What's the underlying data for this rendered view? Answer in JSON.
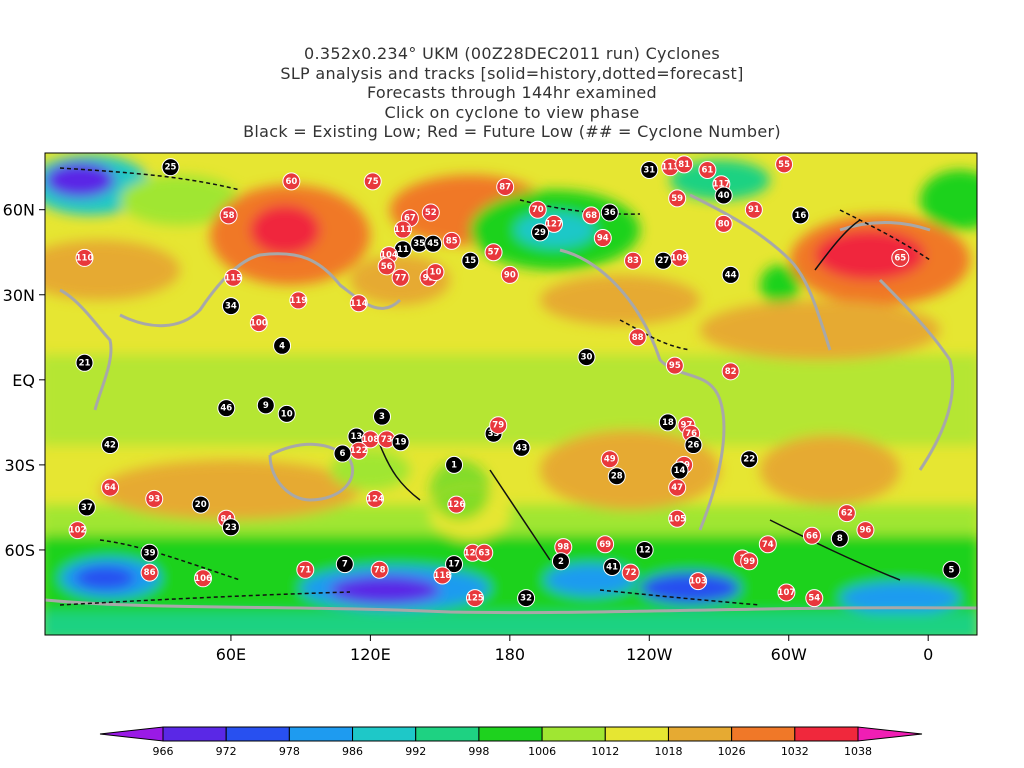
{
  "title_lines": [
    "0.352x0.234° UKM (00Z28DEC2011 run) Cyclones",
    "SLP analysis and tracks [solid=history,dotted=forecast]",
    "Forecasts through 144hr examined",
    "Click on cyclone to view phase",
    "Black = Existing Low; Red = Future Low (## = Cyclone Number)"
  ],
  "axes": {
    "lon_ticks": [
      {
        "label": "60E",
        "lon": 60
      },
      {
        "label": "120E",
        "lon": 120
      },
      {
        "label": "180",
        "lon": 180
      },
      {
        "label": "120W",
        "lon": 240
      },
      {
        "label": "60W",
        "lon": 300
      },
      {
        "label": "0",
        "lon": 360
      }
    ],
    "lat_ticks": [
      {
        "label": "60N",
        "lat": 60
      },
      {
        "label": "30N",
        "lat": 30
      },
      {
        "label": "EQ",
        "lat": 0
      },
      {
        "label": "30S",
        "lat": -30
      },
      {
        "label": "60S",
        "lat": -60
      }
    ]
  },
  "colorbar": {
    "labels": [
      "966",
      "972",
      "978",
      "986",
      "992",
      "998",
      "1006",
      "1012",
      "1018",
      "1026",
      "1032",
      "1038"
    ],
    "colors": [
      "#8a1ae6",
      "#5a28e6",
      "#2850f0",
      "#1e9bf0",
      "#1ec8c8",
      "#1ed282",
      "#1ed21e",
      "#a0e632",
      "#e6e632",
      "#e6aa32",
      "#f07828",
      "#f0283c",
      "#e61ea0"
    ],
    "left_color": "#9a1ae6",
    "right_color": "#f01eb4"
  },
  "cyclones": [
    {
      "id": "25",
      "type": "existing",
      "lon": 34,
      "lat": 75
    },
    {
      "id": "60",
      "type": "future",
      "lon": 86,
      "lat": 70
    },
    {
      "id": "75",
      "type": "future",
      "lon": 121,
      "lat": 70
    },
    {
      "id": "58",
      "type": "future",
      "lon": 59,
      "lat": 58
    },
    {
      "id": "87",
      "type": "future",
      "lon": 178,
      "lat": 68
    },
    {
      "id": "31",
      "type": "existing",
      "lon": 240,
      "lat": 74
    },
    {
      "id": "113",
      "type": "future",
      "lon": 249,
      "lat": 75
    },
    {
      "id": "81",
      "type": "future",
      "lon": 255,
      "lat": 76
    },
    {
      "id": "61",
      "type": "future",
      "lon": 265,
      "lat": 74
    },
    {
      "id": "55",
      "type": "future",
      "lon": 298,
      "lat": 76
    },
    {
      "id": "117",
      "type": "future",
      "lon": 271,
      "lat": 69
    },
    {
      "id": "40",
      "type": "existing",
      "lon": 272,
      "lat": 65
    },
    {
      "id": "59",
      "type": "future",
      "lon": 252,
      "lat": 64
    },
    {
      "id": "70",
      "type": "future",
      "lon": 192,
      "lat": 60
    },
    {
      "id": "127",
      "type": "future",
      "lon": 199,
      "lat": 55
    },
    {
      "id": "68",
      "type": "future",
      "lon": 215,
      "lat": 58
    },
    {
      "id": "36",
      "type": "existing",
      "lon": 223,
      "lat": 59
    },
    {
      "id": "29",
      "type": "existing",
      "lon": 193,
      "lat": 52
    },
    {
      "id": "94",
      "type": "future",
      "lon": 220,
      "lat": 50
    },
    {
      "id": "80",
      "type": "future",
      "lon": 272,
      "lat": 55
    },
    {
      "id": "91",
      "type": "future",
      "lon": 285,
      "lat": 60
    },
    {
      "id": "16",
      "type": "existing",
      "lon": 305,
      "lat": 58
    },
    {
      "id": "52",
      "type": "future",
      "lon": 146,
      "lat": 59
    },
    {
      "id": "67",
      "type": "future",
      "lon": 137,
      "lat": 57
    },
    {
      "id": "111",
      "type": "future",
      "lon": 134,
      "lat": 53
    },
    {
      "id": "35",
      "type": "existing",
      "lon": 141,
      "lat": 48
    },
    {
      "id": "45",
      "type": "existing",
      "lon": 147,
      "lat": 48
    },
    {
      "id": "85",
      "type": "future",
      "lon": 155,
      "lat": 49
    },
    {
      "id": "11",
      "type": "existing",
      "lon": 134,
      "lat": 46
    },
    {
      "id": "104",
      "type": "future",
      "lon": 128,
      "lat": 44
    },
    {
      "id": "56",
      "type": "future",
      "lon": 127,
      "lat": 40
    },
    {
      "id": "77",
      "type": "future",
      "lon": 133,
      "lat": 36
    },
    {
      "id": "92",
      "type": "future",
      "lon": 145,
      "lat": 36
    },
    {
      "id": "10",
      "type": "future",
      "lon": 148,
      "lat": 38
    },
    {
      "id": "15",
      "type": "existing",
      "lon": 163,
      "lat": 42
    },
    {
      "id": "57",
      "type": "future",
      "lon": 173,
      "lat": 45
    },
    {
      "id": "90",
      "type": "future",
      "lon": 180,
      "lat": 37
    },
    {
      "id": "83",
      "type": "future",
      "lon": 233,
      "lat": 42
    },
    {
      "id": "27",
      "type": "existing",
      "lon": 246,
      "lat": 42
    },
    {
      "id": "109",
      "type": "future",
      "lon": 253,
      "lat": 43
    },
    {
      "id": "44",
      "type": "existing",
      "lon": 275,
      "lat": 37
    },
    {
      "id": "65",
      "type": "future",
      "lon": 348,
      "lat": 43
    },
    {
      "id": "110",
      "type": "future",
      "lon": -3,
      "lat": 43
    },
    {
      "id": "115",
      "type": "future",
      "lon": 61,
      "lat": 36
    },
    {
      "id": "119",
      "type": "future",
      "lon": 89,
      "lat": 28
    },
    {
      "id": "114",
      "type": "future",
      "lon": 115,
      "lat": 27
    },
    {
      "id": "34",
      "type": "existing",
      "lon": 60,
      "lat": 26
    },
    {
      "id": "100",
      "type": "future",
      "lon": 72,
      "lat": 20
    },
    {
      "id": "4",
      "type": "existing",
      "lon": 82,
      "lat": 12
    },
    {
      "id": "88",
      "type": "future",
      "lon": 235,
      "lat": 15
    },
    {
      "id": "30",
      "type": "existing",
      "lon": 213,
      "lat": 8
    },
    {
      "id": "95",
      "type": "future",
      "lon": 251,
      "lat": 5
    },
    {
      "id": "82",
      "type": "future",
      "lon": 275,
      "lat": 3
    },
    {
      "id": "21",
      "type": "existing",
      "lon": -3,
      "lat": 6
    },
    {
      "id": "46",
      "type": "existing",
      "lon": 58,
      "lat": -10
    },
    {
      "id": "9",
      "type": "existing",
      "lon": 75,
      "lat": -9
    },
    {
      "id": "10",
      "type": "existing",
      "lon": 84,
      "lat": -12
    },
    {
      "id": "3",
      "type": "existing",
      "lon": 125,
      "lat": -13
    },
    {
      "id": "13",
      "type": "existing",
      "lon": 114,
      "lat": -20
    },
    {
      "id": "108",
      "type": "future",
      "lon": 120,
      "lat": -21
    },
    {
      "id": "73",
      "type": "future",
      "lon": 127,
      "lat": -21
    },
    {
      "id": "19",
      "type": "existing",
      "lon": 133,
      "lat": -22
    },
    {
      "id": "122",
      "type": "future",
      "lon": 115,
      "lat": -25
    },
    {
      "id": "6",
      "type": "existing",
      "lon": 108,
      "lat": -26
    },
    {
      "id": "33",
      "type": "existing",
      "lon": 173,
      "lat": -19
    },
    {
      "id": "79",
      "type": "future",
      "lon": 175,
      "lat": -16
    },
    {
      "id": "43",
      "type": "existing",
      "lon": 185,
      "lat": -24
    },
    {
      "id": "42",
      "type": "existing",
      "lon": 8,
      "lat": -23
    },
    {
      "id": "1",
      "type": "existing",
      "lon": 156,
      "lat": -30
    },
    {
      "id": "18",
      "type": "existing",
      "lon": 248,
      "lat": -15
    },
    {
      "id": "97",
      "type": "future",
      "lon": 256,
      "lat": -16
    },
    {
      "id": "76",
      "type": "future",
      "lon": 258,
      "lat": -19
    },
    {
      "id": "26",
      "type": "existing",
      "lon": 259,
      "lat": -23
    },
    {
      "id": "49",
      "type": "future",
      "lon": 223,
      "lat": -28
    },
    {
      "id": "22",
      "type": "existing",
      "lon": 283,
      "lat": -28
    },
    {
      "id": "89",
      "type": "future",
      "lon": 255,
      "lat": -30
    },
    {
      "id": "14",
      "type": "existing",
      "lon": 253,
      "lat": -32
    },
    {
      "id": "28",
      "type": "existing",
      "lon": 226,
      "lat": -34
    },
    {
      "id": "47",
      "type": "future",
      "lon": 252,
      "lat": -38
    },
    {
      "id": "64",
      "type": "future",
      "lon": 8,
      "lat": -38
    },
    {
      "id": "93",
      "type": "future",
      "lon": 27,
      "lat": -42
    },
    {
      "id": "20",
      "type": "existing",
      "lon": 47,
      "lat": -44
    },
    {
      "id": "124",
      "type": "future",
      "lon": 122,
      "lat": -42
    },
    {
      "id": "126",
      "type": "future",
      "lon": 157,
      "lat": -44
    },
    {
      "id": "37",
      "type": "existing",
      "lon": -2,
      "lat": -45
    },
    {
      "id": "84",
      "type": "future",
      "lon": 58,
      "lat": -49
    },
    {
      "id": "23",
      "type": "existing",
      "lon": 60,
      "lat": -52
    },
    {
      "id": "105",
      "type": "future",
      "lon": 252,
      "lat": -49
    },
    {
      "id": "62",
      "type": "future",
      "lon": 325,
      "lat": -47
    },
    {
      "id": "96",
      "type": "future",
      "lon": 333,
      "lat": -53
    },
    {
      "id": "102",
      "type": "future",
      "lon": -6,
      "lat": -53
    },
    {
      "id": "66",
      "type": "future",
      "lon": 310,
      "lat": -55
    },
    {
      "id": "8",
      "type": "existing",
      "lon": 322,
      "lat": -56
    },
    {
      "id": "74",
      "type": "future",
      "lon": 291,
      "lat": -58
    },
    {
      "id": "98",
      "type": "future",
      "lon": 203,
      "lat": -59
    },
    {
      "id": "69",
      "type": "future",
      "lon": 221,
      "lat": -58
    },
    {
      "id": "12",
      "type": "existing",
      "lon": 238,
      "lat": -60
    },
    {
      "id": "39",
      "type": "existing",
      "lon": 25,
      "lat": -61
    },
    {
      "id": "120",
      "type": "future",
      "lon": 164,
      "lat": -61
    },
    {
      "id": "63",
      "type": "future",
      "lon": 169,
      "lat": -61
    },
    {
      "id": "2",
      "type": "existing",
      "lon": 202,
      "lat": -64
    },
    {
      "id": "41",
      "type": "existing",
      "lon": 224,
      "lat": -66
    },
    {
      "id": "72",
      "type": "future",
      "lon": 232,
      "lat": -68
    },
    {
      "id": "?",
      "type": "future",
      "lon": 280,
      "lat": -63
    },
    {
      "id": "99",
      "type": "future",
      "lon": 283,
      "lat": -64
    },
    {
      "id": "7",
      "type": "existing",
      "lon": 109,
      "lat": -65
    },
    {
      "id": "71",
      "type": "future",
      "lon": 92,
      "lat": -67
    },
    {
      "id": "78",
      "type": "future",
      "lon": 124,
      "lat": -67
    },
    {
      "id": "17",
      "type": "existing",
      "lon": 156,
      "lat": -65
    },
    {
      "id": "118",
      "type": "future",
      "lon": 151,
      "lat": -69
    },
    {
      "id": "86",
      "type": "future",
      "lon": 25,
      "lat": -68
    },
    {
      "id": "106",
      "type": "future",
      "lon": 48,
      "lat": -70
    },
    {
      "id": "5",
      "type": "existing",
      "lon": 370,
      "lat": -67
    },
    {
      "id": "103",
      "type": "future",
      "lon": 261,
      "lat": -71
    },
    {
      "id": "107",
      "type": "future",
      "lon": 299,
      "lat": -75
    },
    {
      "id": "54",
      "type": "future",
      "lon": 311,
      "lat": -77
    },
    {
      "id": "125",
      "type": "future",
      "lon": 165,
      "lat": -77
    },
    {
      "id": "32",
      "type": "existing",
      "lon": 187,
      "lat": -77
    }
  ]
}
